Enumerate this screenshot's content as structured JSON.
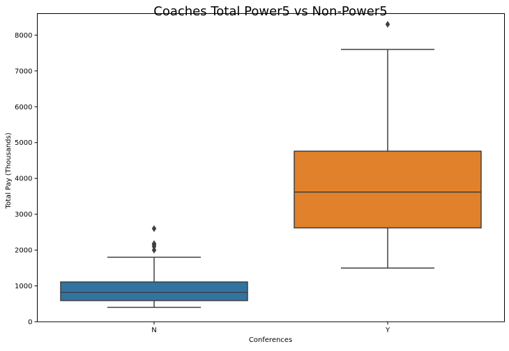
{
  "chart_data": {
    "type": "box",
    "title": "Coaches Total Power5 vs Non-Power5",
    "xlabel": "Conferences",
    "ylabel": "Total Pay (Thousands)",
    "ylim": [
      0,
      8600
    ],
    "y_ticks": [
      0,
      1000,
      2000,
      3000,
      4000,
      5000,
      6000,
      7000,
      8000
    ],
    "categories": [
      "N",
      "Y"
    ],
    "grid": false,
    "legend": "none",
    "boxes": [
      {
        "category": "N",
        "color": "#3274a1",
        "whisker_low": 400,
        "q1": 590,
        "median": 820,
        "q3": 1110,
        "whisker_high": 1800,
        "outliers": [
          2000,
          2100,
          2150,
          2180,
          2600
        ]
      },
      {
        "category": "Y",
        "color": "#e1812c",
        "whisker_low": 1500,
        "q1": 2620,
        "median": 3620,
        "q3": 4760,
        "whisker_high": 7600,
        "outliers": [
          8300
        ]
      }
    ]
  }
}
